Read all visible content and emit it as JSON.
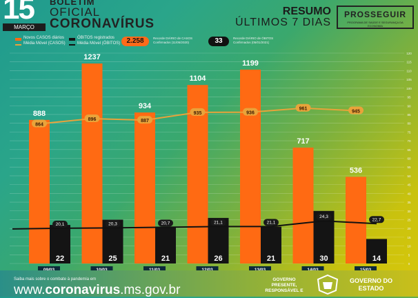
{
  "header": {
    "day": "15",
    "month": "MARÇO",
    "bulletin": [
      "BOLETIM",
      "OFICIAL",
      "CORONAVÍRUS"
    ],
    "summary_title": "RESUMO",
    "summary_subtitle": "ÚLTIMOS 7 DIAS",
    "program_name": "PROSSEGUIR",
    "program_subtitle": "PROGRAMA DE SAÚDE E SEGURANÇA DA ECONOMIA"
  },
  "legend": {
    "cases_daily": "Novos CASOS diários",
    "cases_avg": "Média Móvel (CASOS)",
    "deaths_daily": "ÓBITOS registrados",
    "deaths_avg": "Média Móvel (ÓBITOS)"
  },
  "records": {
    "cases_value": "2.258",
    "cases_label": "Recorde DIÁRIO de CASOS Confirmados (11/05/2020)",
    "deaths_value": "33",
    "deaths_label": "Recorde DIÁRIO de ÓBITOS Confirmados (05/01/2021)"
  },
  "footer": {
    "note": "Saiba mais sobre o combate à pandemia em",
    "url_prefix": "www.",
    "url_main": "coronavirus",
    "url_suffix": ".ms.gov.br",
    "slogan": "GOVERNO PRESENTE, RESPONSÁVEL E",
    "gov_name": "GOVERNO DO ESTADO"
  },
  "colors": {
    "cases_bar": "#ff6a13",
    "deaths_bar": "#141414",
    "cases_line": "#e9a33a",
    "deaths_line": "#111111",
    "axis_text": "#f2f2f2"
  },
  "chart_data": {
    "type": "bar",
    "categories": [
      "09/03",
      "10/03",
      "11/03",
      "12/03",
      "13/03",
      "14/03",
      "15/03"
    ],
    "series": [
      {
        "name": "Novos CASOS diários",
        "axis": "left",
        "values": [
          888,
          1237,
          934,
          1104,
          1199,
          717,
          536
        ]
      },
      {
        "name": "Média Móvel (CASOS)",
        "axis": "left",
        "type": "line",
        "values": [
          864,
          896,
          887,
          935,
          936,
          961,
          945
        ]
      },
      {
        "name": "ÓBITOS registrados",
        "axis": "right",
        "values": [
          22,
          25,
          21,
          26,
          21,
          30,
          14
        ]
      },
      {
        "name": "Média Móvel (ÓBITOS)",
        "axis": "right",
        "type": "line",
        "values": [
          20.1,
          20.3,
          20.7,
          21.1,
          21.1,
          24.3,
          22.7
        ]
      }
    ],
    "ylim_right": [
      0,
      120
    ],
    "right_ticks": [
      0,
      5,
      10,
      15,
      20,
      25,
      30,
      35,
      40,
      45,
      50,
      55,
      60,
      65,
      70,
      75,
      80,
      85,
      90,
      95,
      100,
      105,
      110,
      115,
      120
    ],
    "grid": true,
    "legend_position": "top-left"
  }
}
